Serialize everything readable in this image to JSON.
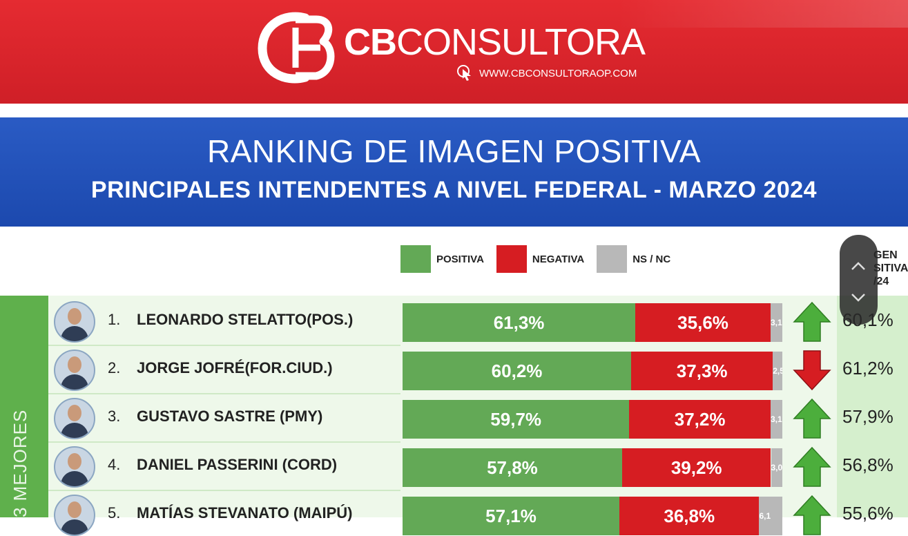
{
  "header": {
    "brand_bold": "CB",
    "brand_rest": "CONSULTORA",
    "website": "WWW.CBCONSULTORAOP.COM",
    "logo": "cb-monogram-logo",
    "cursor_icon": "pointer-cursor-icon"
  },
  "title_bar": {
    "title": "RANKING DE IMAGEN POSITIVA",
    "subtitle": "PRINCIPALES INTENDENTES A NIVEL FEDERAL - MARZO 2024"
  },
  "legend": {
    "positive": "POSITIVA",
    "negative": "NEGATIVA",
    "nsnc": "NS / NC"
  },
  "right_column_header": [
    "GEN",
    "SITIVA",
    "/24"
  ],
  "sidebar_label": "3 MEJORES",
  "colors": {
    "positive": "#63a956",
    "negative": "#d61d22",
    "nsnc": "#b8b8b8",
    "arrow_up": "#4cae3c",
    "arrow_down": "#d61d22"
  },
  "chart_data": {
    "type": "bar",
    "orientation": "horizontal-stacked",
    "title": "RANKING DE IMAGEN POSITIVA",
    "subtitle": "PRINCIPALES INTENDENTES A NIVEL FEDERAL - MARZO 2024",
    "legend": [
      "POSITIVA",
      "NEGATIVA",
      "NS / NC"
    ],
    "rows": [
      {
        "rank": "1.",
        "name": "LEONARDO STELATTO(POS.)",
        "positive": 61.3,
        "negative": 35.6,
        "nsnc": 3.1,
        "positive_label": "61,3%",
        "negative_label": "35,6%",
        "nsnc_label": "3,1",
        "trend": "up",
        "previous_label": "60,1%"
      },
      {
        "rank": "2.",
        "name": "JORGE JOFRÉ(FOR.CIUD.)",
        "positive": 60.2,
        "negative": 37.3,
        "nsnc": 2.5,
        "positive_label": "60,2%",
        "negative_label": "37,3%",
        "nsnc_label": "2,5",
        "trend": "down",
        "previous_label": "61,2%"
      },
      {
        "rank": "3.",
        "name": "GUSTAVO SASTRE (PMY)",
        "positive": 59.7,
        "negative": 37.2,
        "nsnc": 3.1,
        "positive_label": "59,7%",
        "negative_label": "37,2%",
        "nsnc_label": "3,1",
        "trend": "up",
        "previous_label": "57,9%"
      },
      {
        "rank": "4.",
        "name": "DANIEL PASSERINI (CORD)",
        "positive": 57.8,
        "negative": 39.2,
        "nsnc": 3.0,
        "positive_label": "57,8%",
        "negative_label": "39,2%",
        "nsnc_label": "3,0",
        "trend": "up",
        "previous_label": "56,8%"
      },
      {
        "rank": "5.",
        "name": "MATÍAS STEVANATO (MAIPÚ)",
        "positive": 57.1,
        "negative": 36.8,
        "nsnc": 6.1,
        "positive_label": "57,1%",
        "negative_label": "36,8%",
        "nsnc_label": "6,1",
        "trend": "up",
        "previous_label": "55,6%"
      }
    ]
  }
}
